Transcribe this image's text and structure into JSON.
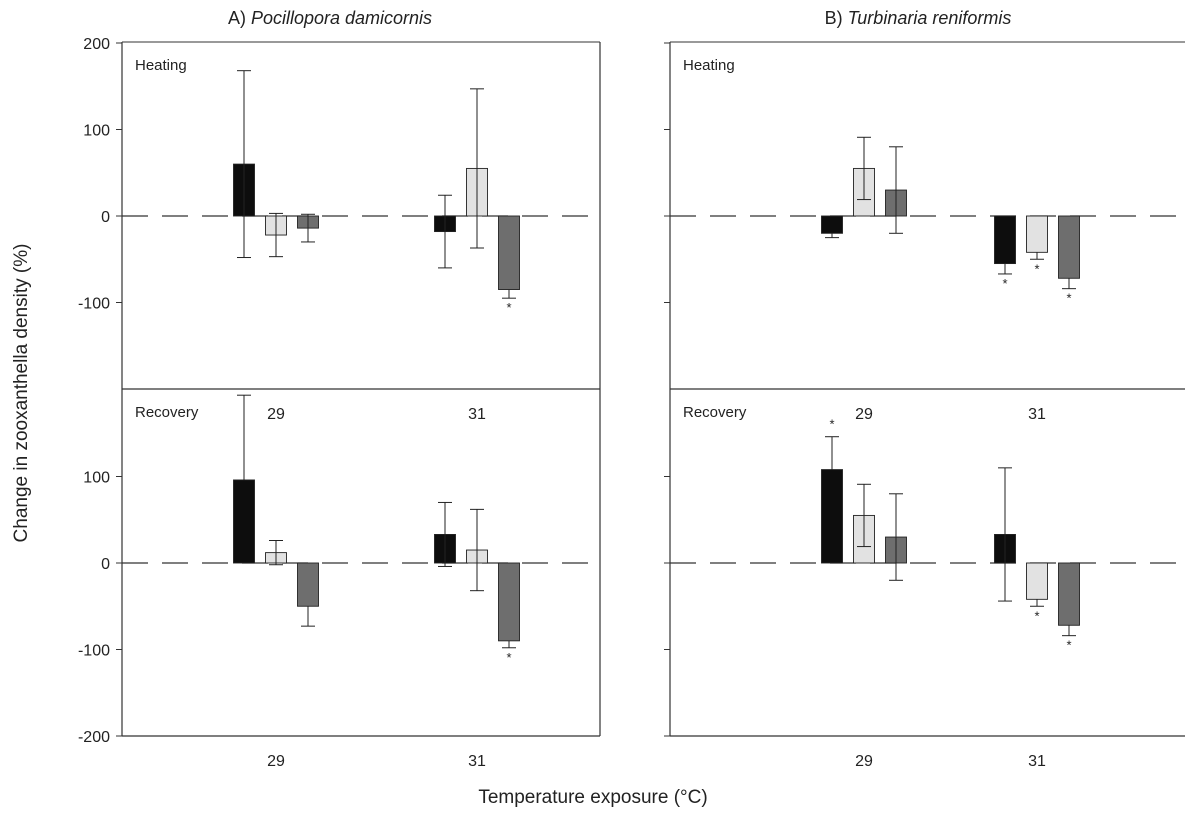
{
  "chart_data": {
    "type": "bar",
    "xlabel": "Temperature exposure  (°C)",
    "ylabel": "Change in zooxanthella density (%)",
    "ylim": [
      -200,
      200
    ],
    "yticks": [
      "200",
      "100",
      "0",
      "-100",
      "-200"
    ],
    "row_yticks": {
      "top": [
        "200",
        "100",
        "0",
        "-100"
      ],
      "bottom": [
        "100",
        "0",
        "-100",
        "-200"
      ]
    },
    "categories": [
      "29",
      "31"
    ],
    "series_colors": [
      "#0d0d0d",
      "#e2e2e2",
      "#6e6e6e"
    ],
    "columns": [
      {
        "prefix": "A) ",
        "species": "Pocillopora damicornis"
      },
      {
        "prefix": "B) ",
        "species": "Turbinaria reniformis"
      }
    ],
    "panels": [
      {
        "col": 0,
        "row": 0,
        "label": "Heating",
        "groups": [
          {
            "category": "29",
            "bars": [
              {
                "value": 60,
                "err": 108,
                "dir": "both",
                "star": false
              },
              {
                "value": -22,
                "err": 25,
                "dir": "both",
                "star": false
              },
              {
                "value": -14,
                "err": 16,
                "dir": "both",
                "star": false
              }
            ]
          },
          {
            "category": "31",
            "bars": [
              {
                "value": -18,
                "err": 42,
                "dir": "both",
                "star": false
              },
              {
                "value": 55,
                "err": 92,
                "dir": "both",
                "star": false
              },
              {
                "value": -85,
                "err": 10,
                "dir": "down",
                "star": true
              }
            ]
          }
        ]
      },
      {
        "col": 0,
        "row": 1,
        "label": "Recovery",
        "groups": [
          {
            "category": "29",
            "bars": [
              {
                "value": 96,
                "err": 98,
                "dir": "up",
                "star": false
              },
              {
                "value": 12,
                "err": 14,
                "dir": "both",
                "star": false
              },
              {
                "value": -50,
                "err": 23,
                "dir": "down",
                "star": false
              }
            ]
          },
          {
            "category": "31",
            "bars": [
              {
                "value": 33,
                "err": 37,
                "dir": "both",
                "star": false
              },
              {
                "value": 15,
                "err": 47,
                "dir": "both",
                "star": false
              },
              {
                "value": -90,
                "err": 8,
                "dir": "down",
                "star": true
              }
            ]
          }
        ]
      },
      {
        "col": 1,
        "row": 0,
        "label": "Heating",
        "groups": [
          {
            "category": "29",
            "bars": [
              {
                "value": -20,
                "err": 5,
                "dir": "down",
                "star": false
              },
              {
                "value": 55,
                "err": 36,
                "dir": "both",
                "star": false
              },
              {
                "value": 30,
                "err": 50,
                "dir": "both",
                "star": false
              }
            ]
          },
          {
            "category": "31",
            "bars": [
              {
                "value": -55,
                "err": 12,
                "dir": "down",
                "star": true
              },
              {
                "value": -42,
                "err": 8,
                "dir": "down",
                "star": true
              },
              {
                "value": -72,
                "err": 12,
                "dir": "down",
                "star": true
              }
            ]
          }
        ]
      },
      {
        "col": 1,
        "row": 1,
        "label": "Recovery",
        "groups": [
          {
            "category": "29",
            "bars": [
              {
                "value": 108,
                "err": 38,
                "dir": "up",
                "star": true
              },
              {
                "value": 55,
                "err": 36,
                "dir": "both",
                "star": false
              },
              {
                "value": 30,
                "err": 50,
                "dir": "both",
                "star": false
              }
            ]
          },
          {
            "category": "31",
            "bars": [
              {
                "value": 33,
                "err": 77,
                "dir": "both",
                "star": false
              },
              {
                "value": -42,
                "err": 8,
                "dir": "down",
                "star": true
              },
              {
                "value": -72,
                "err": 12,
                "dir": "down",
                "star": true
              }
            ]
          }
        ]
      }
    ]
  }
}
